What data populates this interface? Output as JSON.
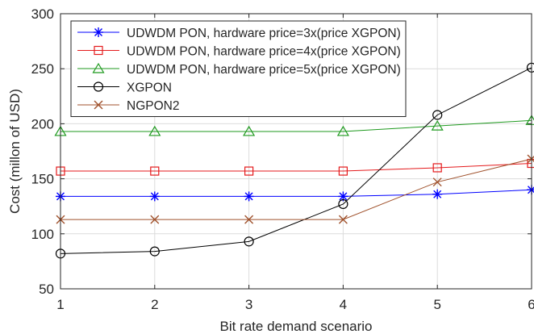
{
  "chart_data": {
    "type": "line",
    "title": "",
    "xlabel": "Bit rate demand scenario",
    "ylabel": "Cost (millon of USD)",
    "x": [
      1,
      2,
      3,
      4,
      5,
      6
    ],
    "xlim": [
      1,
      6
    ],
    "ylim": [
      50,
      300
    ],
    "xticks": [
      "1",
      "2",
      "3",
      "4",
      "5",
      "6"
    ],
    "yticks": [
      "50",
      "100",
      "150",
      "200",
      "250",
      "300"
    ],
    "grid": true,
    "legend_position": "top-left",
    "series": [
      {
        "name": "UDWDM PON, hardware price=3x(price XGPON)",
        "values": [
          134,
          134,
          134,
          134,
          136,
          140
        ],
        "color": "#0000ff",
        "marker": "asterisk"
      },
      {
        "name": "UDWDM PON, hardware price=4x(price XGPON)",
        "values": [
          157,
          157,
          157,
          157,
          160,
          164
        ],
        "color": "#e41a1c",
        "marker": "square"
      },
      {
        "name": "UDWDM PON, hardware price=5x(price XGPON)",
        "values": [
          193,
          193,
          193,
          193,
          198,
          203
        ],
        "color": "#1f9a1f",
        "marker": "triangle"
      },
      {
        "name": "XGPON",
        "values": [
          82,
          84,
          93,
          127,
          208,
          251
        ],
        "color": "#000000",
        "marker": "circle"
      },
      {
        "name": "NGPON2",
        "values": [
          113,
          113,
          113,
          113,
          147,
          168
        ],
        "color": "#a0522d",
        "marker": "x"
      }
    ]
  }
}
